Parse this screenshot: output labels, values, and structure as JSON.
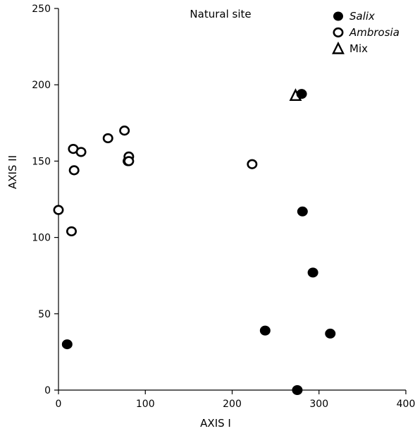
{
  "chart_data": {
    "type": "scatter",
    "title": "Natural site",
    "xlabel": "AXIS I",
    "ylabel": "AXIS II",
    "xlim": [
      0,
      400
    ],
    "ylim": [
      0,
      250
    ],
    "xticks": [
      0,
      100,
      200,
      300,
      400
    ],
    "yticks": [
      0,
      50,
      100,
      150,
      200,
      250
    ],
    "grid": false,
    "legend_position": "top-right",
    "series": [
      {
        "name": "Salix",
        "marker": "filled-circle",
        "color": "#000000",
        "points": [
          {
            "x": 10,
            "y": 30
          },
          {
            "x": 238,
            "y": 39
          },
          {
            "x": 275,
            "y": 0
          },
          {
            "x": 280,
            "y": 194
          },
          {
            "x": 281,
            "y": 117
          },
          {
            "x": 293,
            "y": 77
          },
          {
            "x": 313,
            "y": 37
          }
        ]
      },
      {
        "name": "Ambrosia",
        "marker": "open-circle",
        "color": "#000000",
        "points": [
          {
            "x": 0,
            "y": 118
          },
          {
            "x": 15,
            "y": 104
          },
          {
            "x": 17,
            "y": 158
          },
          {
            "x": 18,
            "y": 144
          },
          {
            "x": 26,
            "y": 156
          },
          {
            "x": 57,
            "y": 165
          },
          {
            "x": 76,
            "y": 170
          },
          {
            "x": 80,
            "y": 150
          },
          {
            "x": 81,
            "y": 153
          },
          {
            "x": 81,
            "y": 150
          },
          {
            "x": 223,
            "y": 148
          }
        ]
      },
      {
        "name": "Mix",
        "marker": "open-triangle",
        "color": "#000000",
        "points": [
          {
            "x": 273,
            "y": 193
          }
        ]
      }
    ]
  }
}
